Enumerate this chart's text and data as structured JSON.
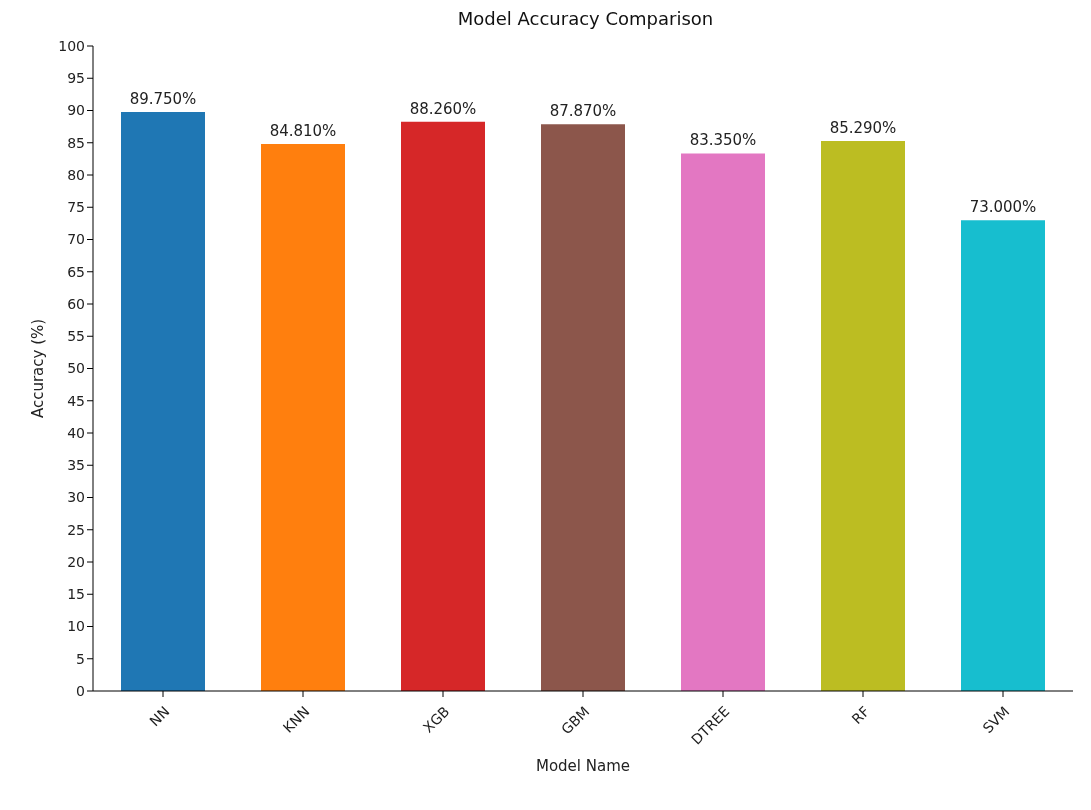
{
  "chart_data": {
    "type": "bar",
    "title": "Model Accuracy Comparison",
    "xlabel": "Model Name",
    "ylabel": "Accuracy (%)",
    "categories": [
      "NN",
      "KNN",
      "XGB",
      "GBM",
      "DTREE",
      "RF",
      "SVM"
    ],
    "values": [
      89.75,
      84.81,
      88.26,
      87.87,
      83.35,
      85.29,
      73.0
    ],
    "colors": [
      "#1f77b4",
      "#ff7f0e",
      "#d62728",
      "#8c564b",
      "#e377c2",
      "#bcbd22",
      "#17becf"
    ],
    "value_labels": [
      "89.750%",
      "84.810%",
      "88.260%",
      "87.870%",
      "83.350%",
      "85.290%",
      "73.000%"
    ],
    "ylim": [
      0,
      100
    ],
    "yticks": [
      0,
      5,
      10,
      15,
      20,
      25,
      30,
      35,
      40,
      45,
      50,
      55,
      60,
      65,
      70,
      75,
      80,
      85,
      90,
      95,
      100
    ],
    "grid": false,
    "legend": false
  }
}
